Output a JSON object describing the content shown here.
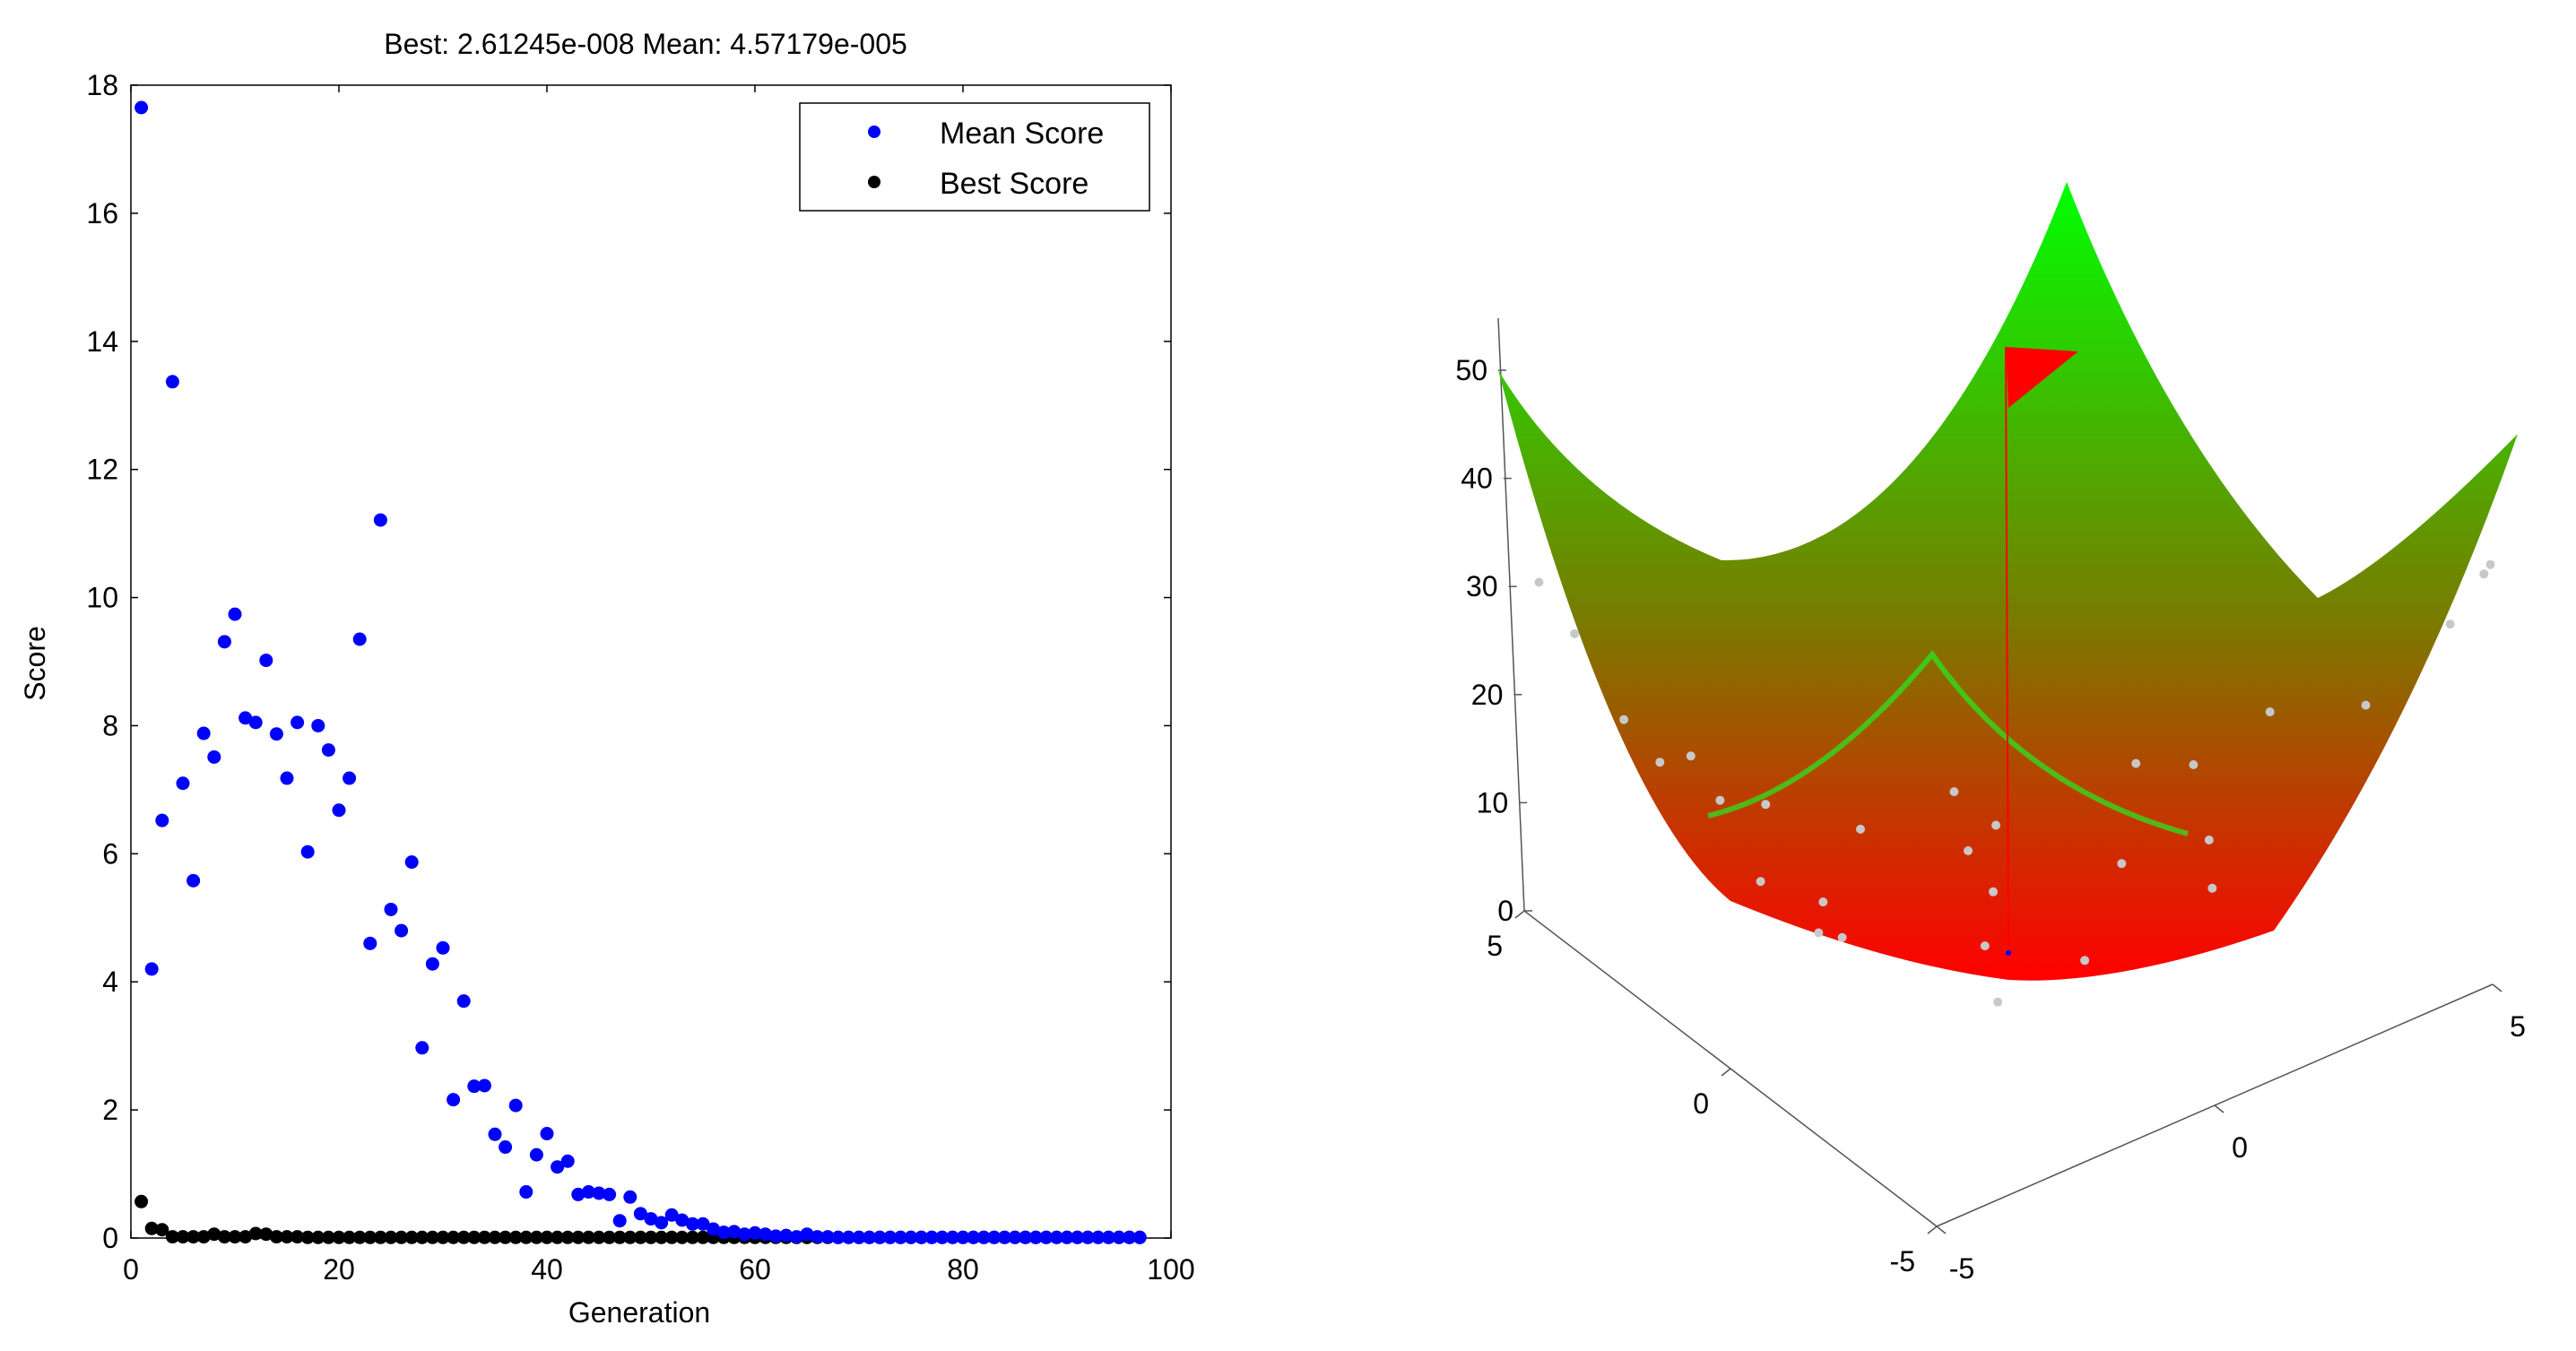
{
  "chart_data": [
    {
      "type": "scatter",
      "title": "Best: 2.61245e-008 Mean: 4.57179e-005",
      "xlabel": "Generation",
      "ylabel": "Score",
      "xlim": [
        0,
        100
      ],
      "ylim": [
        0,
        18
      ],
      "xticks": [
        "0",
        "20",
        "40",
        "60",
        "80",
        "100"
      ],
      "yticks": [
        "0",
        "2",
        "4",
        "6",
        "8",
        "10",
        "12",
        "14",
        "16",
        "18"
      ],
      "legend_position": "top-right",
      "grid": false,
      "series": [
        {
          "name": "Mean Score",
          "color": "#0000ff",
          "x": [
            1,
            2,
            3,
            4,
            5,
            6,
            7,
            8,
            9,
            10,
            11,
            12,
            13,
            14,
            15,
            16,
            17,
            18,
            19,
            20,
            21,
            22,
            23,
            24,
            25,
            26,
            27,
            28,
            29,
            30,
            31,
            32,
            33,
            34,
            35,
            36,
            37,
            38,
            39,
            40,
            41,
            42,
            43,
            44,
            45,
            46,
            47,
            48,
            49,
            50,
            51,
            52,
            53,
            54,
            55,
            56,
            57,
            58,
            59,
            60,
            61,
            62,
            63,
            64,
            65,
            66,
            67,
            68,
            69,
            70,
            71,
            72,
            73,
            74,
            75,
            76,
            77,
            78,
            79,
            80,
            81,
            82,
            83,
            84,
            85,
            86,
            87,
            88,
            89,
            90,
            91,
            92,
            93,
            94,
            95,
            96,
            97
          ],
          "y": [
            17.65,
            4.2,
            6.52,
            13.37,
            7.1,
            5.58,
            7.88,
            7.51,
            9.31,
            9.74,
            8.12,
            8.05,
            9.02,
            7.87,
            7.18,
            8.05,
            6.03,
            8.0,
            7.62,
            6.68,
            7.18,
            9.35,
            4.6,
            11.21,
            5.13,
            4.8,
            5.87,
            2.97,
            4.28,
            4.53,
            2.16,
            3.7,
            2.37,
            2.38,
            1.62,
            1.42,
            2.07,
            0.72,
            1.3,
            1.63,
            1.11,
            1.2,
            0.68,
            0.72,
            0.7,
            0.68,
            0.27,
            0.64,
            0.38,
            0.3,
            0.24,
            0.36,
            0.28,
            0.22,
            0.22,
            0.14,
            0.09,
            0.1,
            0.06,
            0.08,
            0.06,
            0.03,
            0.04,
            0.02,
            0.06,
            0.02,
            0.02,
            0.01,
            0.01,
            0.01,
            0.01,
            0.01,
            0.01,
            0.01,
            0.01,
            0.01,
            0.01,
            0.01,
            0.01,
            0.01,
            0.01,
            0.01,
            0.01,
            0.01,
            0.01,
            0.01,
            0.01,
            0.01,
            0.01,
            0.01,
            0.01,
            0.01,
            0.01,
            0.01,
            0.01,
            0.01,
            0.01
          ]
        },
        {
          "name": "Best Score",
          "color": "#000000",
          "x": [
            1,
            2,
            3,
            4,
            5,
            6,
            7,
            8,
            9,
            10,
            11,
            12,
            13,
            14,
            15,
            16,
            17,
            18,
            19,
            20,
            21,
            22,
            23,
            24,
            25,
            26,
            27,
            28,
            29,
            30,
            31,
            32,
            33,
            34,
            35,
            36,
            37,
            38,
            39,
            40,
            41,
            42,
            43,
            44,
            45,
            46,
            47,
            48,
            49,
            50,
            51,
            52,
            53,
            54,
            55,
            56,
            57,
            58,
            59,
            60,
            61,
            62,
            63,
            64,
            65,
            66,
            67,
            68,
            69,
            70,
            71,
            72,
            73,
            74,
            75,
            76,
            77,
            78,
            79,
            80,
            81,
            82,
            83,
            84,
            85,
            86,
            87,
            88,
            89,
            90,
            91,
            92,
            93,
            94,
            95,
            96,
            97
          ],
          "y": [
            0.57,
            0.15,
            0.13,
            0.02,
            0.02,
            0.02,
            0.02,
            0.06,
            0.02,
            0.02,
            0.02,
            0.07,
            0.06,
            0.02,
            0.02,
            0.02,
            0.01,
            0.01,
            0.01,
            0.01,
            0.01,
            0.01,
            0.01,
            0.01,
            0.01,
            0.01,
            0.01,
            0.01,
            0.01,
            0.01,
            0.01,
            0.01,
            0.01,
            0.01,
            0.01,
            0.01,
            0.01,
            0.01,
            0.01,
            0.01,
            0.01,
            0.01,
            0.01,
            0.01,
            0.01,
            0.01,
            0.01,
            0.01,
            0.01,
            0.01,
            0.01,
            0.01,
            0.01,
            0.01,
            0.01,
            0.01,
            0.01,
            0.01,
            0.01,
            0.01,
            0.01,
            0.01,
            0.01,
            0.01,
            0.01,
            0.01,
            0.01,
            0.01,
            0.01,
            0.01,
            0.01,
            0.01,
            0.01,
            0.01,
            0.01,
            0.01,
            0.01,
            0.01,
            0.01,
            0.01,
            0.01,
            0.01,
            0.01,
            0.01,
            0.01,
            0.01,
            0.01,
            0.01,
            0.01,
            0.01,
            0.01,
            0.01,
            0.01,
            0.01,
            0.01,
            0.01,
            0.01
          ]
        }
      ]
    },
    {
      "type": "surface",
      "function": "x^2 + y^2",
      "xlim": [
        -5,
        5
      ],
      "ylim": [
        -5,
        5
      ],
      "zlim": [
        0,
        50
      ],
      "zticks": [
        "0",
        "10",
        "20",
        "30",
        "40",
        "50"
      ],
      "xticks": [
        "-5",
        "0",
        "5"
      ],
      "yticks": [
        "-5",
        "0",
        "5"
      ],
      "colormap": [
        "#ff0000",
        "#00ff00"
      ],
      "grid": false,
      "population_color": "#c8c8c8",
      "population": [
        [
          -4.9,
          4.1
        ],
        [
          -4.6,
          4.3
        ],
        [
          -3.9,
          4.4
        ],
        [
          -2.2,
          4.6
        ],
        [
          -1.0,
          2.9
        ],
        [
          -0.3,
          3.6
        ],
        [
          3.3,
          -4.9
        ],
        [
          4.4,
          -4.4
        ],
        [
          3.7,
          -3.5
        ],
        [
          1.7,
          -3.0
        ],
        [
          3.9,
          -1.4
        ],
        [
          2.5,
          -4.1
        ],
        [
          -3.6,
          -1.7
        ],
        [
          -2.9,
          -3.4
        ],
        [
          -2.4,
          -3.4
        ],
        [
          -2.3,
          -2.8
        ],
        [
          -2.2,
          -0.9
        ],
        [
          -2.7,
          -4.0
        ],
        [
          0.6,
          -2.6
        ],
        [
          0.3,
          -3.3
        ],
        [
          1.3,
          -4.8
        ],
        [
          -1.6,
          -2.2
        ],
        [
          -4.8,
          -1.6
        ],
        [
          -4.5,
          -2.4
        ],
        [
          -1.2,
          -4.2
        ],
        [
          4.0,
          -0.4
        ],
        [
          0.1,
          -0.1
        ],
        [
          -0.2,
          4.9
        ],
        [
          1.3,
          -2.3
        ]
      ],
      "best_point": [
        0.1,
        -0.1
      ],
      "best_marker_color": "#0000ff",
      "flag_color": "#ff0000"
    }
  ]
}
